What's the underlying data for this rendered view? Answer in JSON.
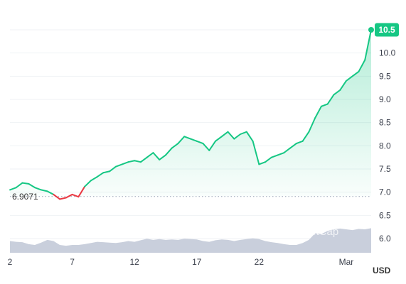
{
  "chart_data": {
    "type": "area",
    "x_labels": [
      "2",
      "7",
      "12",
      "17",
      "22",
      "Mar"
    ],
    "x_label_days": [
      2,
      7,
      12,
      17,
      22,
      29
    ],
    "y_ticks": [
      "6.0",
      "6.5",
      "7.0",
      "7.5",
      "8.0",
      "8.5",
      "9.0",
      "9.5",
      "10.0",
      "10.5"
    ],
    "ylim": [
      5.85,
      10.85
    ],
    "xlim": [
      2,
      31
    ],
    "baseline": {
      "value": 6.9071,
      "label": "6.9071"
    },
    "last_price": {
      "value": 10.5,
      "label": "10.5"
    },
    "currency_label": "USD",
    "watermark": "CoinMarketCap",
    "colors": {
      "up": "#16c784",
      "down": "#ea3943",
      "volume": "#c9cfdc",
      "grid": "#eff2f5"
    },
    "series": [
      {
        "x": [
          2,
          2.5,
          3,
          3.5,
          4,
          4.5,
          5,
          5.5,
          6,
          6.5,
          7,
          7.5,
          8,
          8.5,
          9,
          9.5,
          10,
          10.5,
          11,
          11.5,
          12,
          12.5,
          13,
          13.5,
          14,
          14.5,
          15,
          15.5,
          16,
          16.5,
          17,
          17.5,
          18,
          18.5,
          19,
          19.5,
          20,
          20.5,
          21,
          21.5,
          22,
          22.5,
          23,
          23.5,
          24,
          24.5,
          25,
          25.5,
          26,
          26.5,
          27,
          27.5,
          28,
          28.5,
          29,
          29.5,
          30,
          30.5,
          31
        ],
        "values": [
          7.05,
          7.1,
          7.2,
          7.18,
          7.1,
          7.05,
          7.02,
          6.95,
          6.85,
          6.88,
          6.95,
          6.9,
          7.12,
          7.25,
          7.33,
          7.42,
          7.45,
          7.55,
          7.6,
          7.65,
          7.68,
          7.65,
          7.75,
          7.85,
          7.7,
          7.8,
          7.95,
          8.05,
          8.2,
          8.15,
          8.1,
          8.05,
          7.9,
          8.1,
          8.2,
          8.3,
          8.15,
          8.25,
          8.3,
          8.1,
          7.6,
          7.65,
          7.75,
          7.8,
          7.85,
          7.95,
          8.05,
          8.1,
          8.3,
          8.6,
          8.85,
          8.9,
          9.1,
          9.2,
          9.4,
          9.5,
          9.6,
          9.85,
          10.5
        ]
      }
    ],
    "volume": [
      0.3,
      0.28,
      0.27,
      0.22,
      0.2,
      0.26,
      0.33,
      0.3,
      0.2,
      0.18,
      0.2,
      0.2,
      0.22,
      0.25,
      0.28,
      0.27,
      0.26,
      0.25,
      0.27,
      0.3,
      0.28,
      0.32,
      0.36,
      0.33,
      0.35,
      0.33,
      0.34,
      0.33,
      0.36,
      0.35,
      0.34,
      0.3,
      0.28,
      0.32,
      0.34,
      0.33,
      0.3,
      0.33,
      0.35,
      0.37,
      0.35,
      0.3,
      0.27,
      0.25,
      0.22,
      0.2,
      0.2,
      0.25,
      0.33,
      0.5,
      0.48,
      0.56,
      0.6,
      0.62,
      0.6,
      0.58,
      0.61,
      0.6,
      0.63
    ]
  }
}
